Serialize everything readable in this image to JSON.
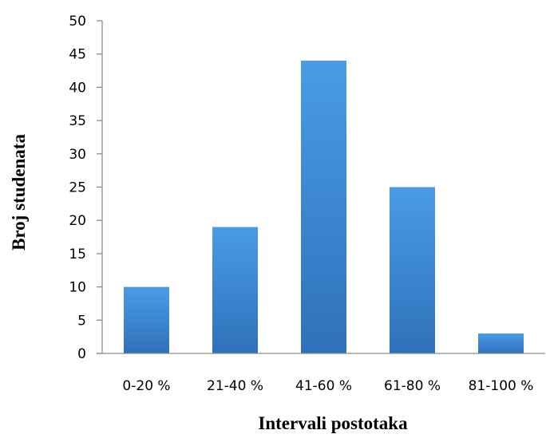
{
  "chart_data": {
    "type": "bar",
    "title": "",
    "xlabel": "Intervali postotaka",
    "ylabel": "Broj studenata",
    "categories": [
      "0-20 %",
      "21-40 %",
      "41-60 %",
      "61-80 %",
      "81-100 %"
    ],
    "values": [
      10,
      19,
      44,
      25,
      3
    ],
    "ylim": [
      0,
      50
    ],
    "yticks": [
      "0",
      "5",
      "10",
      "15",
      "20",
      "25",
      "30",
      "35",
      "40",
      "45",
      "50"
    ],
    "grid": false,
    "legend": "none",
    "colors": {
      "bar_top": "#4a9be6",
      "bar_bottom": "#2f71ba",
      "axis": "#8c8c8c"
    }
  }
}
